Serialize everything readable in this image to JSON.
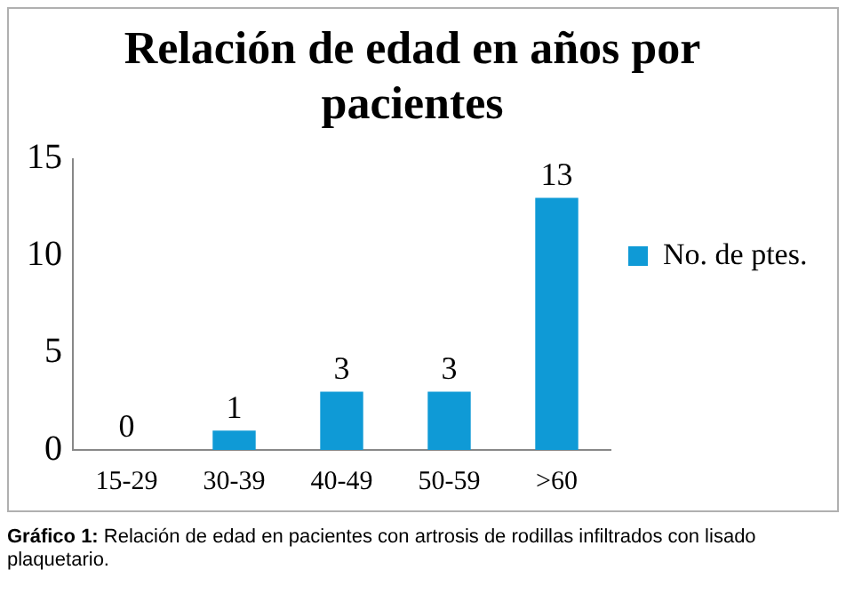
{
  "chart_data": {
    "type": "bar",
    "title": "Relación de edad en años por pacientes",
    "categories": [
      "15-29",
      "30-39",
      "40-49",
      "50-59",
      ">60"
    ],
    "series": [
      {
        "name": "No. de ptes.",
        "color": "#0f9ad6",
        "values": [
          0,
          1,
          3,
          3,
          13
        ]
      }
    ],
    "ylim": [
      0,
      15
    ],
    "yticks": [
      0,
      5,
      10,
      15
    ],
    "grid": false,
    "legend": "right",
    "data_labels": true,
    "annotations": [
      "Gráfico 1: Relación de edad en pacientes con artrosis de rodillas infiltrados con lisado plaquetario."
    ]
  }
}
